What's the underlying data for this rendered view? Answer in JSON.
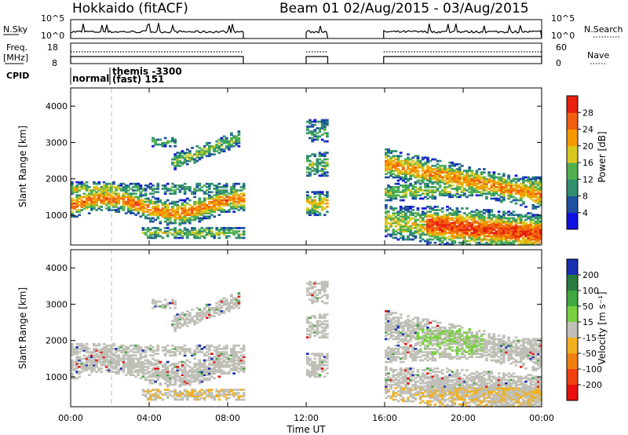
{
  "header": {
    "title_left": "Hokkaido (fitACF)",
    "title_right": "Beam 01  02/Aug/2015 - 03/Aug/2015"
  },
  "strip": {
    "nsky_label": "N.Sky",
    "nsearch_label": "N.Search",
    "nsky_ticks": [
      "10^5",
      "10^0"
    ],
    "nsearch_ticks": [
      "10^5",
      "10^0"
    ],
    "freq_label_1": "Freq.",
    "freq_label_2": "[MHz]",
    "freq_ticks": [
      "18",
      "8"
    ],
    "nave_label": "Nave",
    "nave_ticks": [
      "60",
      "0"
    ],
    "cpid_label": "CPID",
    "cpid_modes": [
      "normal",
      "themis -3300",
      "(fast) 151"
    ]
  },
  "chart_data": [
    {
      "type": "heatmap",
      "quantity": "Power",
      "ylabel": "Slant Range [km]",
      "ylim": [
        180,
        4500
      ],
      "yticks": [
        "1000",
        "2000",
        "3000",
        "4000"
      ],
      "colorbar_label": "Power [dB]",
      "colorbar_ticks": [
        "4",
        "8",
        "12",
        "16",
        "20",
        "24",
        "28"
      ],
      "colorbar_colors": [
        "#1010e0",
        "#2050a0",
        "#309070",
        "#50b050",
        "#d8c820",
        "#f59a00",
        "#f06010",
        "#e82010"
      ],
      "data_intervals_ut": [
        [
          0,
          8.8
        ],
        [
          12,
          13.1
        ],
        [
          15.95,
          24
        ]
      ]
    },
    {
      "type": "heatmap",
      "quantity": "Velocity",
      "ylabel": "Slant Range [km]",
      "ylim": [
        180,
        4500
      ],
      "yticks": [
        "1000",
        "2000",
        "3000",
        "4000"
      ],
      "colorbar_label": "Velocity [m s⁻¹]",
      "colorbar_ticks": [
        "200",
        "100",
        "50",
        "15",
        "-15",
        "-50",
        "-100",
        "-200"
      ],
      "colorbar_colors": [
        "#1a2fb0",
        "#2a7a40",
        "#40a840",
        "#78d040",
        "#c0c0b8",
        "#f0b020",
        "#f08010",
        "#f04010",
        "#e81010"
      ],
      "data_intervals_ut": [
        [
          0,
          8.8
        ],
        [
          12,
          13.1
        ],
        [
          15.95,
          24
        ]
      ]
    }
  ],
  "xaxis": {
    "label": "Time UT",
    "ticks": [
      "00:00",
      "04:00",
      "08:00",
      "12:00",
      "16:00",
      "20:00",
      "00:00"
    ]
  }
}
